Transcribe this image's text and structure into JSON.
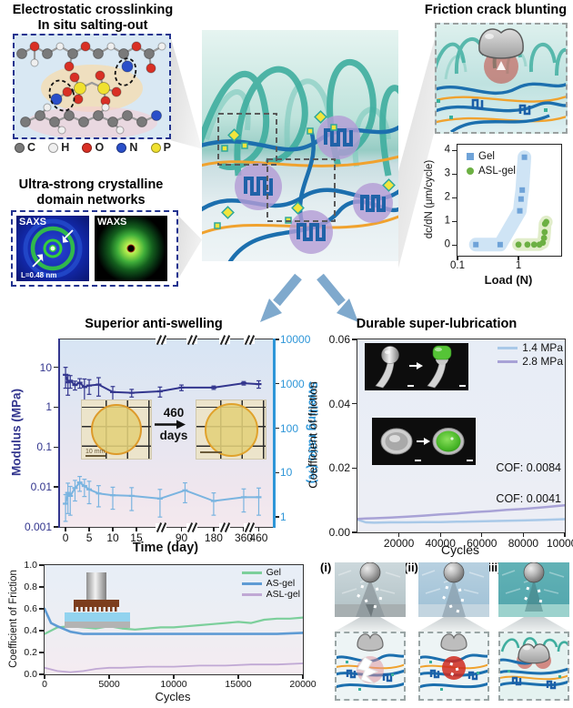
{
  "panels": {
    "electrostatic": {
      "title_line1": "Electrostatic crosslinking",
      "title_line2": "In situ salting-out",
      "atoms": [
        {
          "label": "C",
          "color": "#7a7a7a"
        },
        {
          "label": "H",
          "color": "#efefef"
        },
        {
          "label": "O",
          "color": "#d93025"
        },
        {
          "label": "N",
          "color": "#2a4fc9"
        },
        {
          "label": "P",
          "color": "#f0e130"
        }
      ]
    },
    "crystalline": {
      "title_line1": "Ultra-strong crystalline",
      "title_line2": "domain networks",
      "saxs_label": "SAXS",
      "waxs_label": "WAXS",
      "saxs_annotation": "L=0.48 nm"
    },
    "crack_blunting": {
      "title": "Friction crack blunting"
    },
    "anti_swelling_inset": {
      "duration_value": "460",
      "duration_unit": "days",
      "scale_bar": "10 mm"
    },
    "mechanism": {
      "labels": [
        "(i)",
        "(ii)",
        "(iii)"
      ]
    }
  },
  "chart_data": [
    {
      "type": "scatter",
      "xlabel": "Load (N)",
      "ylabel": "dc/dN (μm/cycle)",
      "xscale": "log",
      "xlim": [
        0.1,
        5
      ],
      "ylim": [
        -0.45,
        4.25
      ],
      "xticks": [
        "0.1",
        "1"
      ],
      "xtick_vals": [
        0.1,
        1
      ],
      "yticks": [
        "0",
        "1",
        "2",
        "3",
        "4"
      ],
      "ytick_vals": [
        0,
        1,
        2,
        3,
        4
      ],
      "tick_colors": {
        "x": "#111111",
        "y": "#111111"
      },
      "legend_position": "top-left",
      "series": [
        {
          "name": "Gel",
          "type": "scatter",
          "color": "#6fa3d8",
          "marker": "square",
          "band_color": "#cfe4f5",
          "band_width": 15,
          "x": [
            0.2,
            0.5,
            1.05,
            1.1,
            1.15,
            1.25
          ],
          "y": [
            0.02,
            0.02,
            1.45,
            1.95,
            2.33,
            3.72
          ]
        },
        {
          "name": "ASL-gel",
          "type": "scatter",
          "color": "#6cb043",
          "marker": "circle",
          "band_color": "#e1edca",
          "band_width": 14,
          "x": [
            1.0,
            1.4,
            1.8,
            2.2,
            2.5,
            2.62,
            2.68,
            2.72,
            2.85
          ],
          "y": [
            0.02,
            0.02,
            0.02,
            0.02,
            0.1,
            0.3,
            0.55,
            0.9,
            0.98
          ]
        }
      ]
    },
    {
      "type": "line",
      "title": "Superior anti-swelling",
      "xlabel": "Time (day)",
      "ylabel": "Modulus (MPa)",
      "y2label": "Swelling ratio (%)",
      "xscale": "broken",
      "x_anchors": [
        [
          0,
          0.03
        ],
        [
          20,
          0.47
        ],
        [
          90,
          0.57
        ],
        [
          180,
          0.72
        ],
        [
          360,
          0.86
        ],
        [
          460,
          0.93
        ]
      ],
      "yscale": "log",
      "ylim": [
        0.001,
        50
      ],
      "y2scale": "log",
      "y2lim": [
        0.6,
        10000
      ],
      "xticks": [
        "0",
        "5",
        "10",
        "15",
        "90",
        "180",
        "360",
        "460"
      ],
      "xtick_vals": [
        0,
        5,
        10,
        15,
        90,
        180,
        360,
        460
      ],
      "yticks": [
        "10",
        "1",
        "0.1",
        "0.01",
        "0.001"
      ],
      "ytick_vals": [
        10,
        1,
        0.1,
        0.01,
        0.001
      ],
      "y2ticks": [
        "10000",
        "1000",
        "100",
        "10",
        "1"
      ],
      "y2tick_vals": [
        10000,
        1000,
        100,
        10,
        1
      ],
      "tick_colors": {
        "x": "#111111",
        "y": "#33368e",
        "y2": "#2e96d8"
      },
      "series": [
        {
          "name": "Modulus",
          "color": "#33368e",
          "width": 2,
          "marker": "dash",
          "x": [
            0,
            0.5,
            1,
            2,
            3,
            4,
            5,
            7,
            10,
            14,
            20,
            90,
            180,
            360,
            460
          ],
          "y": [
            6.5,
            4.2,
            4.6,
            3.6,
            4.1,
            3.2,
            3.5,
            3.7,
            2.4,
            2.3,
            2.5,
            3.1,
            3.1,
            4.0,
            3.8
          ],
          "yerr": [
            3.5,
            2.2,
            1.6,
            0.9,
            1.1,
            1.9,
            1.4,
            1.8,
            0.9,
            0.5,
            0.7,
            0.5,
            0.3,
            0.4,
            0.8
          ]
        },
        {
          "name": "Swelling ratio",
          "axis": "right",
          "color": "#7ab4e0",
          "width": 2,
          "marker": "dash",
          "x": [
            0,
            0.5,
            1,
            2,
            3,
            4,
            5,
            7,
            10,
            14,
            20,
            100,
            180,
            360,
            460
          ],
          "y": [
            2.0,
            3.5,
            3.0,
            4.5,
            6.0,
            5.0,
            4.2,
            3.4,
            3.1,
            3.0,
            2.6,
            4.0,
            2.3,
            2.8,
            2.8
          ],
          "yerr": [
            1.2,
            2.3,
            1.9,
            2.2,
            2.2,
            2.1,
            2.2,
            1.7,
            1.6,
            1.6,
            1.6,
            1.9,
            1.2,
            1.5,
            1.7
          ]
        }
      ]
    },
    {
      "type": "line",
      "title": "Durable super-lubrication",
      "xlabel": "Cycles",
      "ylabel": "Coefficient of friction",
      "xlim": [
        0,
        100000
      ],
      "ylim": [
        0,
        0.06
      ],
      "xticks": [
        "20000",
        "40000",
        "60000",
        "80000",
        "100000"
      ],
      "xtick_vals": [
        20000,
        40000,
        60000,
        80000,
        100000
      ],
      "yticks": [
        "0.00",
        "0.02",
        "0.04",
        "0.06"
      ],
      "ytick_vals": [
        0,
        0.02,
        0.04,
        0.06
      ],
      "tick_colors": {
        "x": "#111111",
        "y": "#111111"
      },
      "annotations": [
        "COF: 0.0084",
        "COF: 0.0041"
      ],
      "series": [
        {
          "name": "1.4 MPa",
          "color": "#a9c9e8",
          "width": 2.5,
          "x": [
            0,
            4000,
            8000,
            16000,
            24000,
            32000,
            40000,
            48000,
            56000,
            64000,
            72000,
            80000,
            90000,
            100000
          ],
          "y": [
            0.004,
            0.0031,
            0.003,
            0.0031,
            0.0031,
            0.0032,
            0.0032,
            0.0033,
            0.0034,
            0.0035,
            0.0036,
            0.0037,
            0.0039,
            0.0041
          ]
        },
        {
          "name": "2.8 MPa",
          "color": "#a8a2d6",
          "width": 2.5,
          "x": [
            0,
            4000,
            8000,
            16000,
            24000,
            32000,
            40000,
            48000,
            56000,
            64000,
            72000,
            80000,
            90000,
            100000
          ],
          "y": [
            0.0042,
            0.0043,
            0.0044,
            0.0046,
            0.0049,
            0.0052,
            0.0056,
            0.0059,
            0.0063,
            0.0066,
            0.007,
            0.0073,
            0.0078,
            0.0084
          ]
        }
      ]
    },
    {
      "type": "line",
      "xlabel": "Cycles",
      "ylabel": "Coefficient of Friction",
      "xlim": [
        0,
        20000
      ],
      "ylim": [
        0,
        1
      ],
      "xticks": [
        "0",
        "5000",
        "10000",
        "15000",
        "20000"
      ],
      "xtick_vals": [
        0,
        5000,
        10000,
        15000,
        20000
      ],
      "yticks": [
        "0.0",
        "0.2",
        "0.4",
        "0.6",
        "0.8",
        "1.0"
      ],
      "ytick_vals": [
        0,
        0.2,
        0.4,
        0.6,
        0.8,
        1
      ],
      "tick_colors": {
        "x": "#111111",
        "y": "#111111"
      },
      "series": [
        {
          "name": "Gel",
          "color": "#7ccf9b",
          "width": 2.2,
          "x": [
            0,
            1000,
            2000,
            3000,
            4000,
            5000,
            6000,
            7000,
            8000,
            9000,
            10000,
            11000,
            12000,
            13000,
            14000,
            15000,
            16000,
            17000,
            18000,
            19000,
            20000
          ],
          "y": [
            0.37,
            0.43,
            0.44,
            0.43,
            0.42,
            0.44,
            0.42,
            0.41,
            0.42,
            0.43,
            0.43,
            0.44,
            0.45,
            0.46,
            0.47,
            0.48,
            0.47,
            0.5,
            0.51,
            0.51,
            0.52
          ]
        },
        {
          "name": "AS-gel",
          "color": "#5e9bd4",
          "width": 2.6,
          "x": [
            0,
            500,
            1000,
            2000,
            3000,
            4000,
            6000,
            8000,
            10000,
            12000,
            14000,
            16000,
            18000,
            20000
          ],
          "y": [
            0.6,
            0.47,
            0.44,
            0.39,
            0.37,
            0.37,
            0.37,
            0.37,
            0.37,
            0.37,
            0.37,
            0.37,
            0.37,
            0.38
          ]
        },
        {
          "name": "ASL-gel",
          "color": "#c0a8d4",
          "width": 1.8,
          "x": [
            0,
            1000,
            2000,
            3000,
            4000,
            5000,
            6000,
            8000,
            10000,
            12000,
            14000,
            16000,
            18000,
            20000
          ],
          "y": [
            0.06,
            0.03,
            0.02,
            0.03,
            0.05,
            0.06,
            0.06,
            0.07,
            0.07,
            0.08,
            0.08,
            0.09,
            0.09,
            0.1
          ]
        }
      ]
    }
  ]
}
